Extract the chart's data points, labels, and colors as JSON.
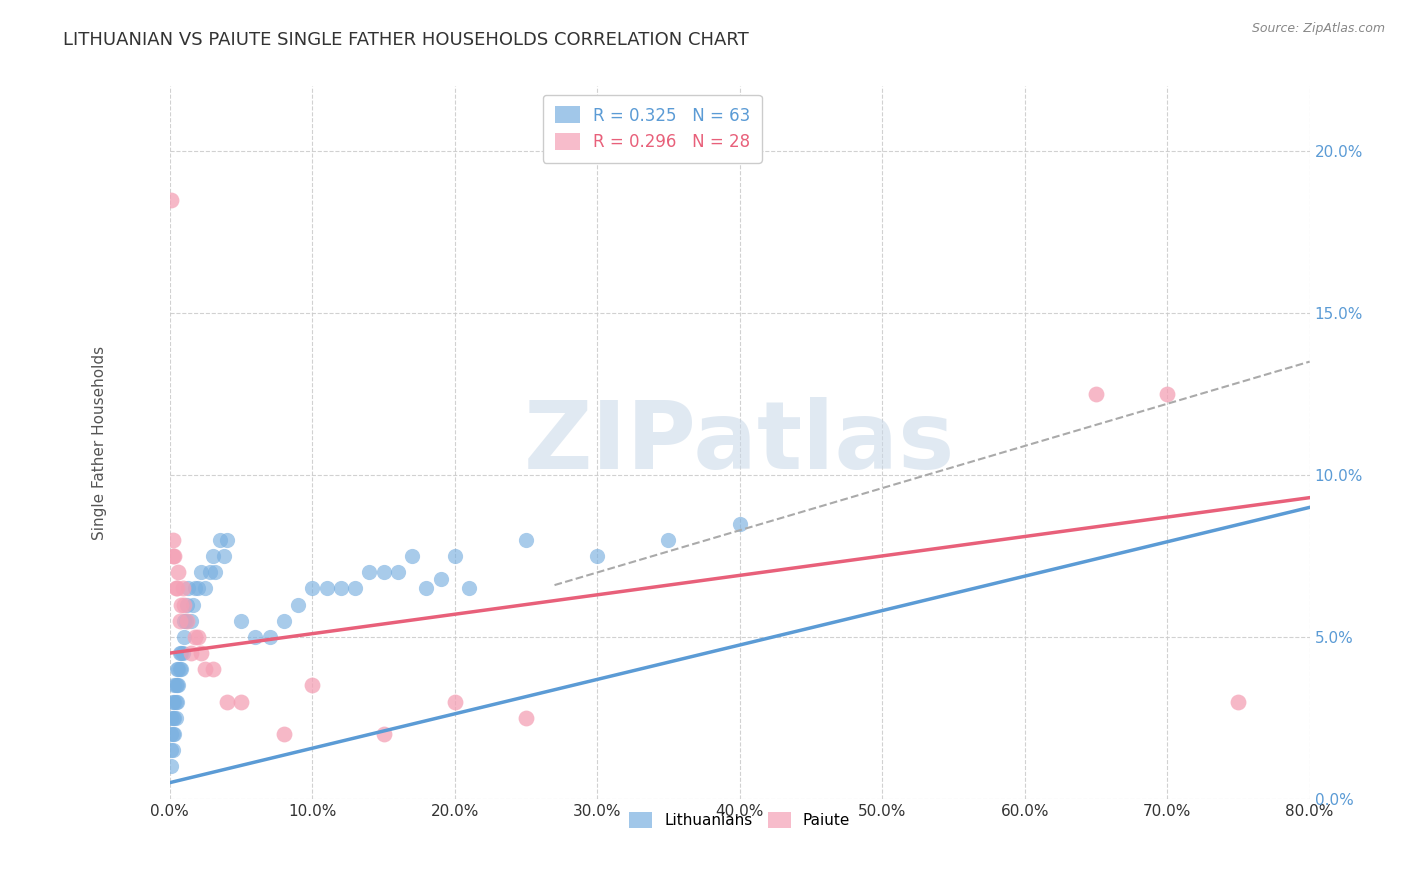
{
  "title": "LITHUANIAN VS PAIUTE SINGLE FATHER HOUSEHOLDS CORRELATION CHART",
  "source_text": "Source: ZipAtlas.com",
  "ylabel": "Single Father Households",
  "xlabel": "",
  "watermark_zip": "ZIP",
  "watermark_atlas": "atlas",
  "xlim": [
    0.0,
    0.8
  ],
  "ylim": [
    0.0,
    0.22
  ],
  "xticks": [
    0.0,
    0.1,
    0.2,
    0.3,
    0.4,
    0.5,
    0.6,
    0.7,
    0.8
  ],
  "yticks": [
    0.0,
    0.05,
    0.1,
    0.15,
    0.2
  ],
  "xtick_labels": [
    "0.0%",
    "10.0%",
    "20.0%",
    "30.0%",
    "40.0%",
    "50.0%",
    "60.0%",
    "70.0%",
    "80.0%"
  ],
  "ytick_labels": [
    "0.0%",
    "5.0%",
    "10.0%",
    "15.0%",
    "20.0%"
  ],
  "legend_entry1": "R = 0.325   N = 63",
  "legend_entry2": "R = 0.296   N = 28",
  "legend_labels_bottom": [
    "Lithuanians",
    "Paiute"
  ],
  "line_lithuanian_color": "#5b9bd5",
  "line_paiute_color": "#e8607a",
  "line_dash_color": "#aaaaaa",
  "scatter_lithuanian_color": "#7ab0e0",
  "scatter_paiute_color": "#f4a0b5",
  "background_color": "#ffffff",
  "grid_color": "#cccccc",
  "title_color": "#333333",
  "title_fontsize": 13,
  "axis_label_color": "#555555",
  "tick_color": "#5b9bd5",
  "tick_color_right": "#5b9bd5",
  "lithuanian_scatter_x": [
    0.001,
    0.001,
    0.001,
    0.001,
    0.002,
    0.002,
    0.002,
    0.002,
    0.003,
    0.003,
    0.003,
    0.003,
    0.004,
    0.004,
    0.004,
    0.005,
    0.005,
    0.005,
    0.006,
    0.006,
    0.007,
    0.007,
    0.008,
    0.008,
    0.009,
    0.01,
    0.01,
    0.011,
    0.012,
    0.013,
    0.015,
    0.016,
    0.018,
    0.02,
    0.022,
    0.025,
    0.028,
    0.03,
    0.032,
    0.035,
    0.038,
    0.04,
    0.05,
    0.06,
    0.07,
    0.08,
    0.09,
    0.1,
    0.12,
    0.15,
    0.2,
    0.25,
    0.3,
    0.35,
    0.4,
    0.11,
    0.13,
    0.14,
    0.16,
    0.17,
    0.18,
    0.19,
    0.21
  ],
  "lithuanian_scatter_y": [
    0.01,
    0.015,
    0.02,
    0.025,
    0.015,
    0.02,
    0.025,
    0.03,
    0.02,
    0.025,
    0.03,
    0.035,
    0.025,
    0.03,
    0.035,
    0.03,
    0.035,
    0.04,
    0.035,
    0.04,
    0.04,
    0.045,
    0.04,
    0.045,
    0.045,
    0.05,
    0.055,
    0.055,
    0.06,
    0.065,
    0.055,
    0.06,
    0.065,
    0.065,
    0.07,
    0.065,
    0.07,
    0.075,
    0.07,
    0.08,
    0.075,
    0.08,
    0.055,
    0.05,
    0.05,
    0.055,
    0.06,
    0.065,
    0.065,
    0.07,
    0.075,
    0.08,
    0.075,
    0.08,
    0.085,
    0.065,
    0.065,
    0.07,
    0.07,
    0.075,
    0.065,
    0.068,
    0.065
  ],
  "paiute_scatter_x": [
    0.001,
    0.002,
    0.002,
    0.003,
    0.004,
    0.005,
    0.006,
    0.007,
    0.008,
    0.009,
    0.01,
    0.012,
    0.015,
    0.018,
    0.02,
    0.022,
    0.025,
    0.03,
    0.04,
    0.05,
    0.08,
    0.1,
    0.15,
    0.2,
    0.25,
    0.65,
    0.7,
    0.75
  ],
  "paiute_scatter_y": [
    0.185,
    0.075,
    0.08,
    0.075,
    0.065,
    0.065,
    0.07,
    0.055,
    0.06,
    0.065,
    0.06,
    0.055,
    0.045,
    0.05,
    0.05,
    0.045,
    0.04,
    0.04,
    0.03,
    0.03,
    0.02,
    0.035,
    0.02,
    0.03,
    0.025,
    0.125,
    0.125,
    0.03
  ],
  "trendline_lithuanian": {
    "x_start": 0.0,
    "y_start": 0.005,
    "x_end": 0.8,
    "y_end": 0.09
  },
  "trendline_paiute": {
    "x_start": 0.0,
    "y_start": 0.045,
    "x_end": 0.8,
    "y_end": 0.093
  },
  "trendline_dash": {
    "x_start": 0.27,
    "y_start": 0.066,
    "x_end": 0.8,
    "y_end": 0.135
  }
}
